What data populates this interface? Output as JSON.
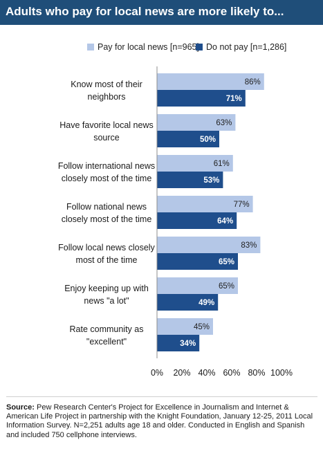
{
  "chart_data": {
    "type": "bar",
    "orientation": "horizontal",
    "title": "Adults who pay for local news are more likely to...",
    "categories": [
      [
        "Know most of their",
        "neighbors"
      ],
      [
        "Have favorite local news",
        "source"
      ],
      [
        "Follow international news",
        "closely most of the time"
      ],
      [
        "Follow national news",
        "closely most of the time"
      ],
      [
        "Follow local news closely",
        "most of the time"
      ],
      [
        "Enjoy keeping up with",
        "news \"a lot\""
      ],
      [
        "Rate community as",
        "\"excellent\""
      ]
    ],
    "series": [
      {
        "name": "Pay for local news [n=965]",
        "values": [
          86,
          63,
          61,
          77,
          83,
          65,
          45
        ],
        "color": "#b4c7e7"
      },
      {
        "name": "Do not pay [n=1,286]",
        "values": [
          71,
          50,
          53,
          64,
          65,
          49,
          34
        ],
        "color": "#1f4e8c"
      }
    ],
    "value_suffix": "%",
    "xlim": [
      0,
      100
    ],
    "xticks": [
      "0%",
      "20%",
      "40%",
      "60%",
      "80%",
      "100%"
    ],
    "legend_position": "top",
    "grid": false
  },
  "source": {
    "label": "Source:",
    "text": "Pew Research Center's Project for Excellence in Journalism and Internet & American Life Project in partnership with the Knight Foundation, January 12-25, 2011 Local Information Survey. N=2,251 adults age 18 and older. Conducted in English and Spanish and included 750 cellphone interviews."
  },
  "colors": {
    "title_bg": "#1f4e79",
    "pay": "#b4c7e7",
    "no_pay": "#1f4e8c"
  }
}
